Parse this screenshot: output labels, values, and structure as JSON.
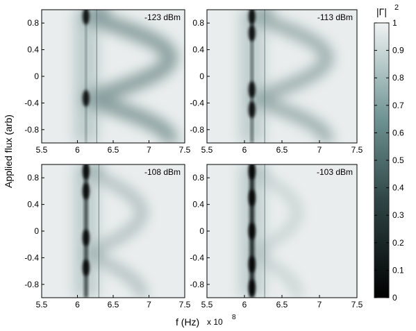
{
  "chart_data": [
    {
      "type": "heatmap",
      "power_label": "-123 dBm",
      "xlim": [
        5.5,
        7.5
      ],
      "ylim": [
        -1.0,
        1.0
      ],
      "x_ticks": [
        "5.5",
        "6",
        "6.5",
        "7",
        "7.5"
      ],
      "y_ticks": [
        "0.8",
        "0.4",
        "0",
        "-0.4",
        "-0.8"
      ],
      "resonance_hz_e8": 6.12,
      "feature_line_hz_e8": 6.27,
      "dip_flux_points": [
        0.9,
        -0.33
      ],
      "curve_max_hz_e8": 7.3
    },
    {
      "type": "heatmap",
      "power_label": "-113 dBm",
      "xlim": [
        5.5,
        7.5
      ],
      "ylim": [
        -1.0,
        1.0
      ],
      "x_ticks": [
        "5.5",
        "6",
        "6.5",
        "7",
        "7.5"
      ],
      "y_ticks": [
        "0.8",
        "0.4",
        "0",
        "-0.4",
        "-0.8"
      ],
      "resonance_hz_e8": 6.1,
      "feature_line_hz_e8": 6.27,
      "dip_flux_points": [
        0.9,
        0.65,
        -0.2,
        -0.5
      ],
      "curve_max_hz_e8": 7.1
    },
    {
      "type": "heatmap",
      "power_label": "-108 dBm",
      "xlim": [
        5.5,
        7.5
      ],
      "ylim": [
        -1.0,
        1.0
      ],
      "x_ticks": [
        "5.5",
        "6",
        "6.5",
        "7",
        "7.5"
      ],
      "y_ticks": [
        "0.8",
        "0.4",
        "0",
        "-0.4",
        "-0.8"
      ],
      "resonance_hz_e8": 6.12,
      "feature_line_hz_e8": 6.3,
      "dip_flux_points": [
        0.9,
        0.6,
        -0.1,
        -0.55
      ],
      "curve_max_hz_e8": 6.9
    },
    {
      "type": "heatmap",
      "power_label": "-103 dBm",
      "xlim": [
        5.5,
        7.5
      ],
      "ylim": [
        -1.0,
        1.0
      ],
      "x_ticks": [
        "5.5",
        "6",
        "6.5",
        "7",
        "7.5"
      ],
      "y_ticks": [
        "0.8",
        "0.4",
        "0",
        "-0.4",
        "-0.8"
      ],
      "resonance_hz_e8": 6.1,
      "feature_line_hz_e8": 6.27,
      "dip_flux_points": [
        0.9,
        0.5,
        0.0,
        -0.5,
        -0.85
      ],
      "curve_max_hz_e8": 6.7
    }
  ],
  "axes": {
    "ylabel": "Applied flux (arb)",
    "xlabel": "f (Hz)",
    "x_multiplier": "x 10",
    "x_multiplier_exp": "8"
  },
  "colorbar": {
    "label_base": "|Γ|",
    "label_exp": "2",
    "range": [
      0,
      1
    ],
    "ticks": [
      "1",
      "0.9",
      "0.8",
      "0.7",
      "0.6",
      "0.5",
      "0.4",
      "0.3",
      "0.2",
      "0.1",
      "0"
    ],
    "colors": {
      "low": "#000000",
      "mid": "#5f8484",
      "high": "#ebeeee"
    }
  }
}
